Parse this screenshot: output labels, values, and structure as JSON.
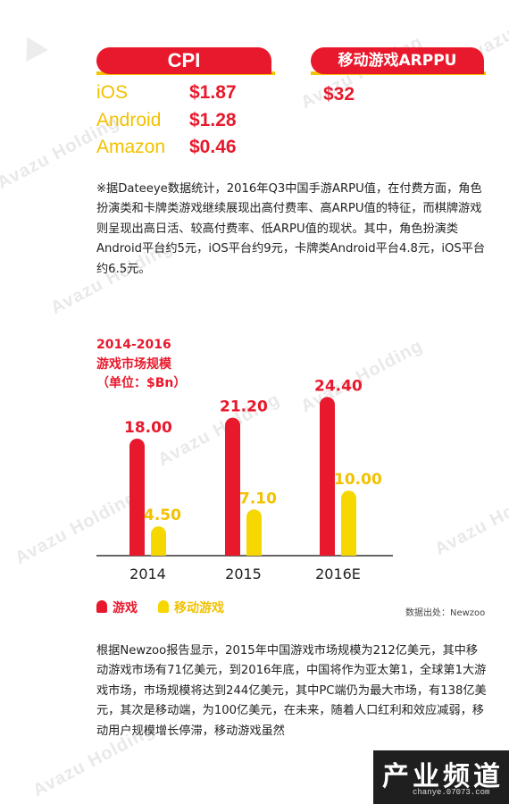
{
  "watermark": {
    "text": "Avazu Holding"
  },
  "cpi": {
    "label": "CPI",
    "rows": [
      {
        "platform": "iOS",
        "price": "$1.87"
      },
      {
        "platform": "Android",
        "price": "$1.28"
      },
      {
        "platform": "Amazon",
        "price": "$0.46"
      }
    ]
  },
  "arppu": {
    "label": "移动游戏ARPPU",
    "value": "$32"
  },
  "note": "※据Dateeye数据统计，2016年Q3中国手游ARPU值，在付费方面，角色扮演类和卡牌类游戏继续展现出高付费率、高ARPU值的特征，而棋牌游戏则呈现出高日活、较高付费率、低ARPU值的现状。其中，角色扮演类Android平台约5元，iOS平台约9元，卡牌类Android平台4.8元，iOS平台约6.5元。",
  "chart_title": {
    "line1": "2014-2016",
    "line2": "游戏市场规模",
    "unit": "（单位：$Bn）"
  },
  "chart_data": {
    "type": "bar",
    "categories": [
      "2014",
      "2015",
      "2016E"
    ],
    "series": [
      {
        "name": "游戏",
        "values": [
          18.0,
          21.2,
          24.4
        ],
        "labels": [
          "18.00",
          "21.20",
          "24.40"
        ],
        "color": "#e8192c"
      },
      {
        "name": "移动游戏",
        "values": [
          4.5,
          7.1,
          10.0
        ],
        "labels": [
          "4.50",
          "7.10",
          "10.00"
        ],
        "color": "#f7d700"
      }
    ],
    "ylim": [
      0,
      25
    ],
    "grid": false,
    "legend": "bottom-left"
  },
  "source": "数据出处：Newzoo",
  "paragraph2": "根据Newzoo报告显示，2015年中国游戏市场规模为212亿美元，其中移动游戏市场有71亿美元，到2016年底，中国将作为亚太第1，全球第1大游戏市场，市场规模将达到244亿美元，其中PC端仍为最大市场，有138亿美元，其次是移动端，为100亿美元，在未来，随着人口红利和效应减弱，移动用户规模增长停滞，移动游戏虽然",
  "logo": {
    "text": "产业频道",
    "url": "chanye.07073.com"
  },
  "colors": {
    "red": "#e8192c",
    "yellow": "#f7d700"
  }
}
